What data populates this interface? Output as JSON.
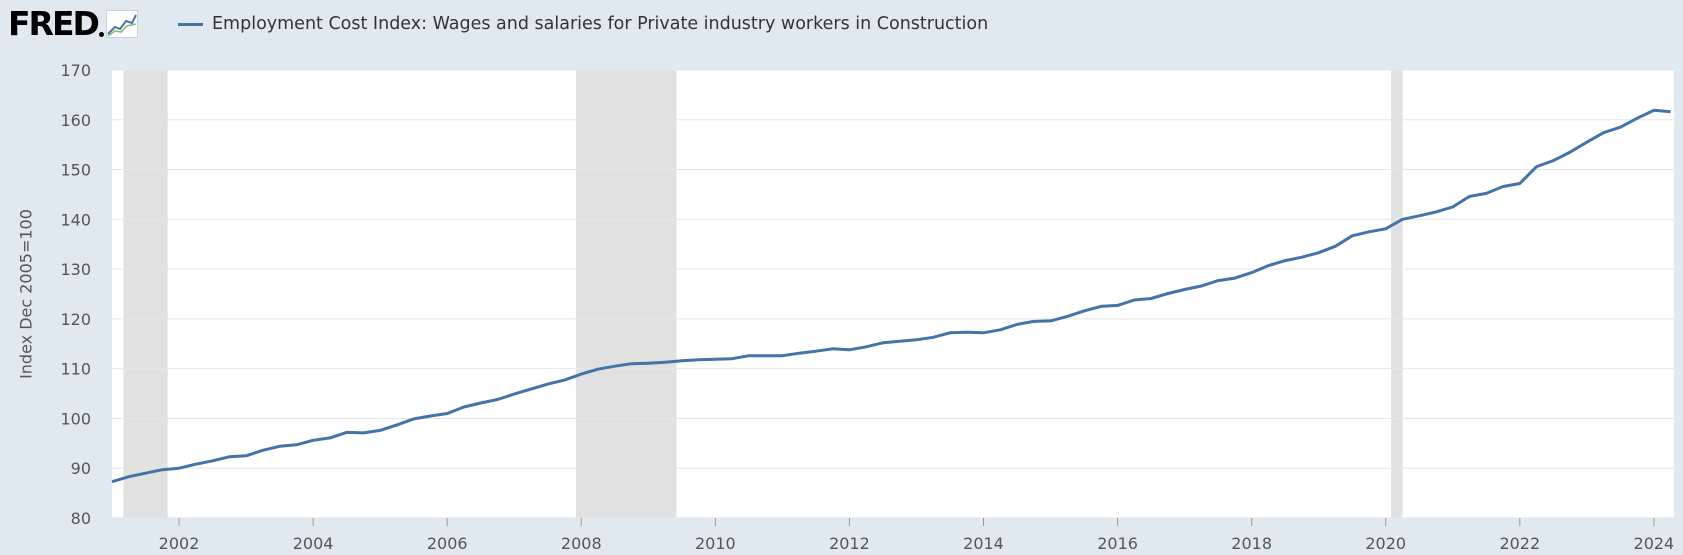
{
  "header": {
    "logo_text": "FRED",
    "legend_label": "Employment Cost Index: Wages and salaries for Private industry workers in Construction"
  },
  "colors": {
    "background": "#e1e9f0",
    "plot_background": "#ffffff",
    "line": "#4572a7",
    "recession": "#e1e1e1",
    "grid": "#e6e6e6"
  },
  "icons": [
    "fred-logo-graph-icon"
  ],
  "chart_data": {
    "type": "line",
    "title": "",
    "xlabel": "",
    "ylabel": "Index Dec 2005=100",
    "xlim": [
      2001.0,
      2024.3
    ],
    "ylim": [
      80,
      170
    ],
    "yticks": [
      80,
      90,
      100,
      110,
      120,
      130,
      140,
      150,
      160,
      170
    ],
    "xticks": [
      2002,
      2004,
      2006,
      2008,
      2010,
      2012,
      2014,
      2016,
      2018,
      2020,
      2022,
      2024
    ],
    "grid": true,
    "legend_position": "top-left",
    "recessions": [
      {
        "start": 2001.17,
        "end": 2001.83
      },
      {
        "start": 2007.92,
        "end": 2009.42
      },
      {
        "start": 2020.08,
        "end": 2020.25
      }
    ],
    "series": [
      {
        "name": "Employment Cost Index: Wages and salaries for Private industry workers in Construction",
        "x": [
          2001.0,
          2001.25,
          2001.5,
          2001.75,
          2002.0,
          2002.25,
          2002.5,
          2002.75,
          2003.0,
          2003.25,
          2003.5,
          2003.75,
          2004.0,
          2004.25,
          2004.5,
          2004.75,
          2005.0,
          2005.25,
          2005.5,
          2005.75,
          2006.0,
          2006.25,
          2006.5,
          2006.75,
          2007.0,
          2007.25,
          2007.5,
          2007.75,
          2008.0,
          2008.25,
          2008.5,
          2008.75,
          2009.0,
          2009.25,
          2009.5,
          2009.75,
          2010.0,
          2010.25,
          2010.5,
          2010.75,
          2011.0,
          2011.25,
          2011.5,
          2011.75,
          2012.0,
          2012.25,
          2012.5,
          2012.75,
          2013.0,
          2013.25,
          2013.5,
          2013.75,
          2014.0,
          2014.25,
          2014.5,
          2014.75,
          2015.0,
          2015.25,
          2015.5,
          2015.75,
          2016.0,
          2016.25,
          2016.5,
          2016.75,
          2017.0,
          2017.25,
          2017.5,
          2017.75,
          2018.0,
          2018.25,
          2018.5,
          2018.75,
          2019.0,
          2019.25,
          2019.5,
          2019.75,
          2020.0,
          2020.25,
          2020.5,
          2020.75,
          2021.0,
          2021.25,
          2021.5,
          2021.75,
          2022.0,
          2022.25,
          2022.5,
          2022.75,
          2023.0,
          2023.25,
          2023.5,
          2023.75,
          2024.0,
          2024.25
        ],
        "y": [
          87.3,
          88.3,
          89.0,
          89.7,
          90.0,
          90.8,
          91.5,
          92.3,
          92.5,
          93.6,
          94.4,
          94.7,
          95.6,
          96.1,
          97.2,
          97.1,
          97.6,
          98.7,
          99.9,
          100.5,
          101.0,
          102.3,
          103.1,
          103.8,
          104.9,
          105.9,
          106.9,
          107.7,
          108.9,
          109.9,
          110.5,
          111.0,
          111.1,
          111.3,
          111.6,
          111.8,
          111.9,
          112.0,
          112.6,
          112.6,
          112.6,
          113.1,
          113.5,
          114.0,
          113.8,
          114.4,
          115.2,
          115.5,
          115.8,
          116.3,
          117.2,
          117.3,
          117.2,
          117.8,
          118.9,
          119.5,
          119.6,
          120.5,
          121.6,
          122.5,
          122.7,
          123.8,
          124.1,
          125.1,
          125.9,
          126.6,
          127.7,
          128.2,
          129.3,
          130.7,
          131.7,
          132.4,
          133.3,
          134.6,
          136.7,
          137.5,
          138.1,
          140.0,
          140.7,
          141.5,
          142.5,
          144.6,
          145.2,
          146.6,
          147.2,
          150.6,
          151.8,
          153.5,
          155.5,
          157.4,
          158.5,
          160.3,
          161.9,
          161.6
        ]
      }
    ]
  }
}
